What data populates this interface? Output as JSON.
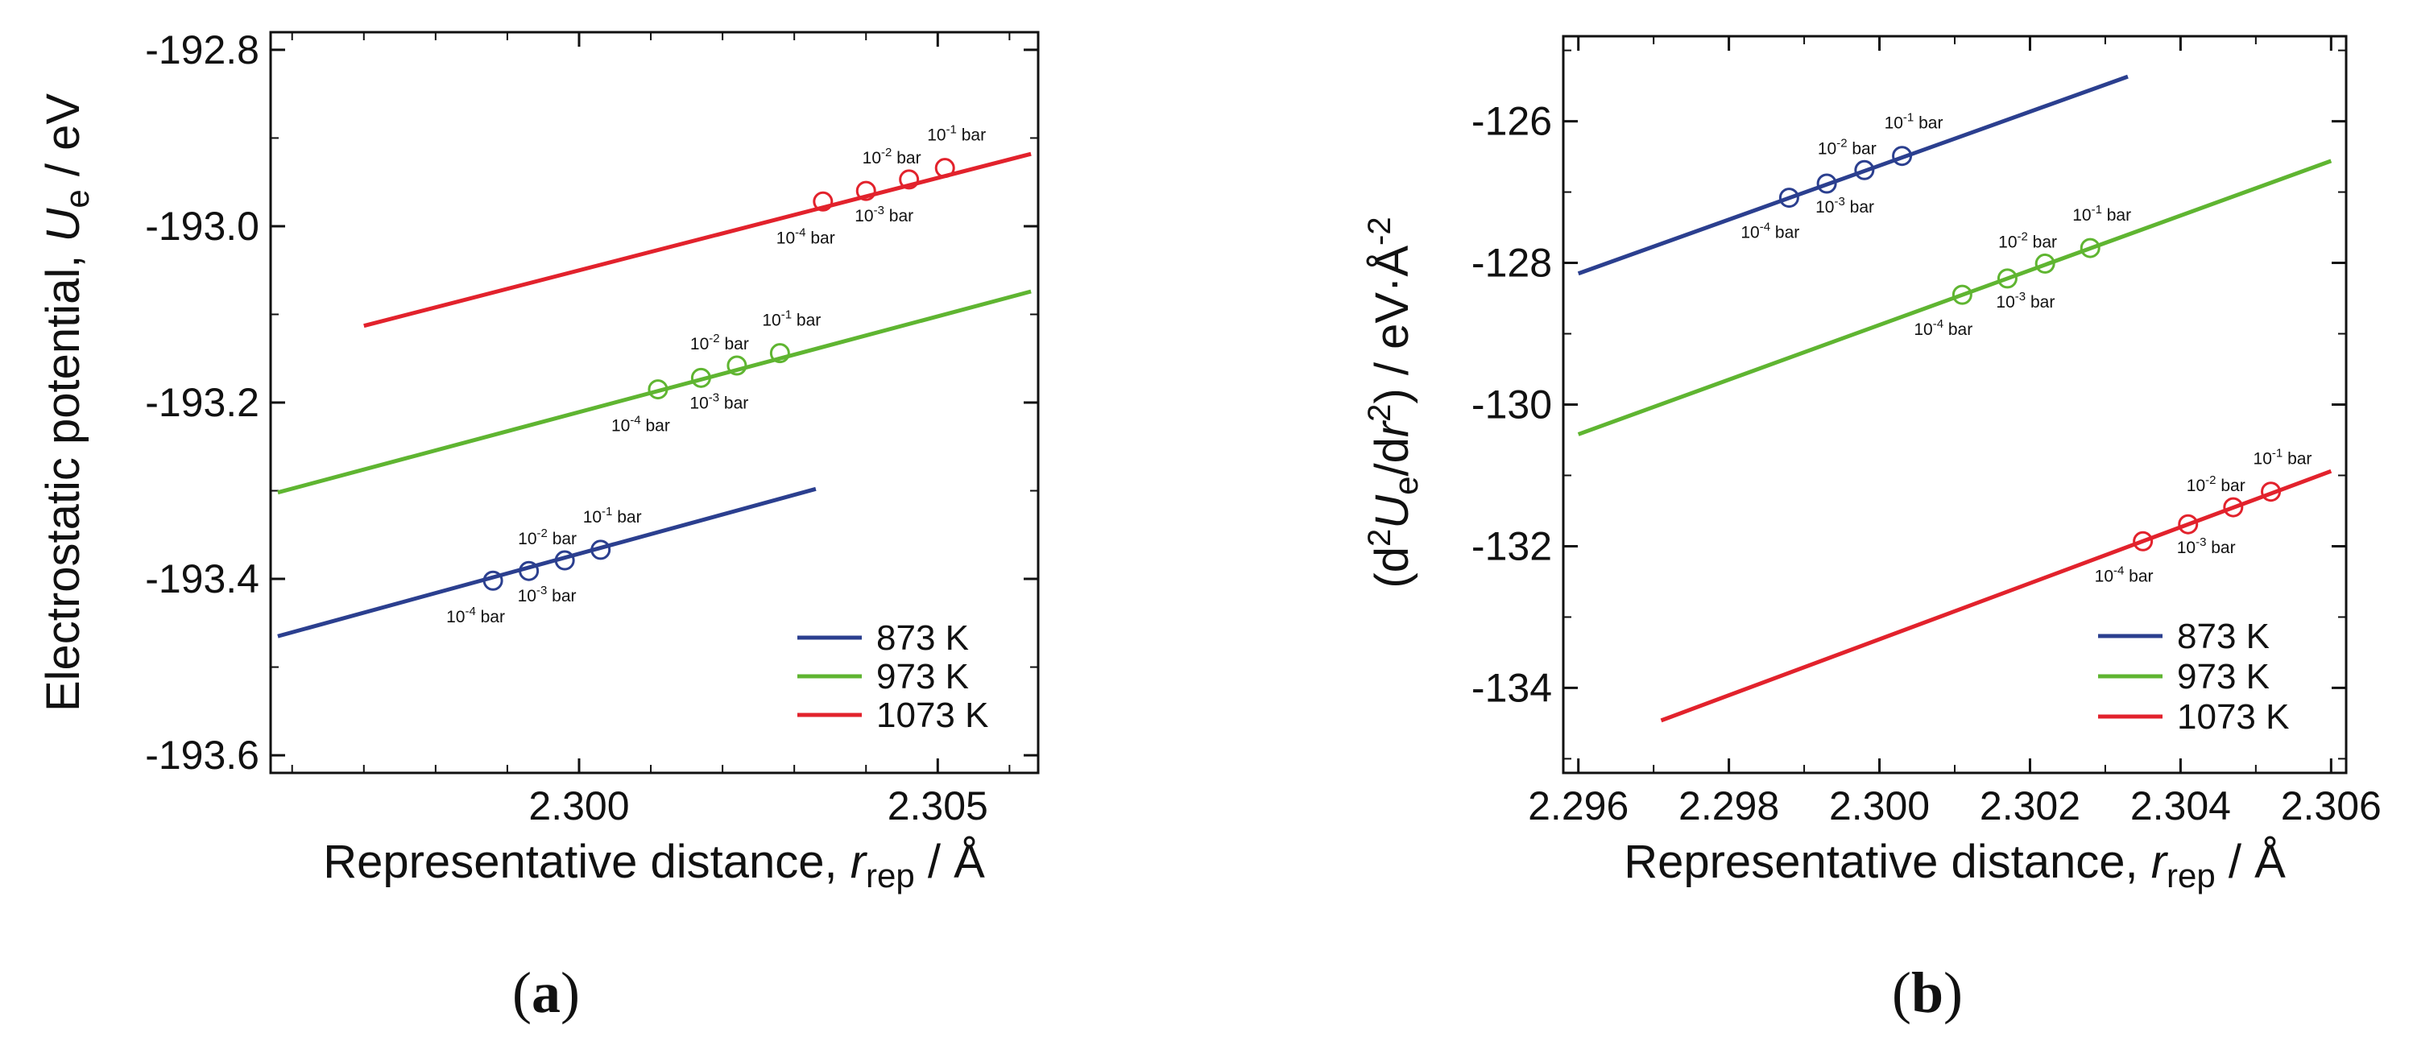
{
  "chart_data": [
    {
      "id": "a",
      "type": "line",
      "panel_label": "(a)",
      "panel_letter": "a",
      "xlabel": "Representative distance, r_rep / Å",
      "xlabel_parts": {
        "pre": "Representative distance, ",
        "sym": "r",
        "sub": "rep",
        "post": " / Å"
      },
      "ylabel": "Electrostatic potential, U_e / eV",
      "ylabel_parts": {
        "pre": "Electrostatic potential, ",
        "sym": "U",
        "sub": "e",
        "post": " / eV"
      },
      "xlim": [
        2.2957,
        2.3064
      ],
      "ylim": [
        -193.62,
        -192.78
      ],
      "xticks": [
        2.3,
        2.305
      ],
      "xtick_labels": [
        "2.300",
        "2.305"
      ],
      "xminor": [
        2.296,
        2.297,
        2.298,
        2.299,
        2.301,
        2.302,
        2.303,
        2.304,
        2.306
      ],
      "yticks": [
        -193.6,
        -193.4,
        -193.2,
        -193.0,
        -192.8
      ],
      "ytick_labels": [
        "-193.6",
        "-193.4",
        "-193.2",
        "-193.0",
        "-192.8"
      ],
      "yminor": [
        -193.5,
        -193.3,
        -193.1,
        -192.9
      ],
      "legend": {
        "position": "bottom-right",
        "entries": [
          "873 K",
          "973 K",
          "1073 K"
        ]
      },
      "series": [
        {
          "name": "873 K",
          "color": "#2b3f8f",
          "line": {
            "x": [
              2.2958,
              2.3033
            ],
            "y": [
              -193.465,
              -193.298
            ]
          },
          "points": [
            {
              "x": 2.2988,
              "y": -193.402,
              "exp": "-4"
            },
            {
              "x": 2.2993,
              "y": -193.391,
              "exp": "-3"
            },
            {
              "x": 2.2998,
              "y": -193.379,
              "exp": "-2"
            },
            {
              "x": 2.3003,
              "y": -193.367,
              "exp": "-1"
            }
          ]
        },
        {
          "name": "973 K",
          "color": "#5fb531",
          "line": {
            "x": [
              2.2958,
              2.3063
            ],
            "y": [
              -193.302,
              -193.074
            ]
          },
          "points": [
            {
              "x": 2.3011,
              "y": -193.185,
              "exp": "-4"
            },
            {
              "x": 2.3017,
              "y": -193.172,
              "exp": "-3"
            },
            {
              "x": 2.3022,
              "y": -193.158,
              "exp": "-2"
            },
            {
              "x": 2.3028,
              "y": -193.144,
              "exp": "-1"
            }
          ]
        },
        {
          "name": "1073 K",
          "color": "#e2222c",
          "line": {
            "x": [
              2.297,
              2.3063
            ],
            "y": [
              -193.113,
              -192.918
            ]
          },
          "points": [
            {
              "x": 2.3034,
              "y": -192.972,
              "exp": "-4"
            },
            {
              "x": 2.304,
              "y": -192.96,
              "exp": "-3"
            },
            {
              "x": 2.3046,
              "y": -192.947,
              "exp": "-2"
            },
            {
              "x": 2.3051,
              "y": -192.934,
              "exp": "-1"
            }
          ]
        }
      ]
    },
    {
      "id": "b",
      "type": "line",
      "panel_label": "(b)",
      "panel_letter": "b",
      "xlabel": "Representative distance, r_rep / Å",
      "xlabel_parts": {
        "pre": "Representative distance, ",
        "sym": "r",
        "sub": "rep",
        "post": " / Å"
      },
      "ylabel": "(d²U_e/dr²) / eV·Å⁻²",
      "xlim": [
        2.2958,
        2.3062
      ],
      "ylim": [
        -135.2,
        -124.8
      ],
      "xticks": [
        2.296,
        2.298,
        2.3,
        2.302,
        2.304,
        2.306
      ],
      "xtick_labels": [
        "2.296",
        "2.298",
        "2.300",
        "2.302",
        "2.304",
        "2.306"
      ],
      "xminor": [
        2.297,
        2.299,
        2.301,
        2.303,
        2.305
      ],
      "yticks": [
        -134,
        -132,
        -130,
        -128,
        -126
      ],
      "ytick_labels": [
        "-134",
        "-132",
        "-130",
        "-128",
        "-126"
      ],
      "yminor": [
        -135,
        -133,
        -131,
        -129,
        -127,
        -125
      ],
      "legend": {
        "position": "bottom-right",
        "entries": [
          "873 K",
          "973 K",
          "1073 K"
        ]
      },
      "series": [
        {
          "name": "873 K",
          "color": "#2b3f8f",
          "line": {
            "x": [
              2.296,
              2.3033
            ],
            "y": [
              -128.15,
              -125.37
            ]
          },
          "points": [
            {
              "x": 2.2988,
              "y": -127.08,
              "exp": "-4"
            },
            {
              "x": 2.2993,
              "y": -126.88,
              "exp": "-3"
            },
            {
              "x": 2.2998,
              "y": -126.69,
              "exp": "-2"
            },
            {
              "x": 2.3003,
              "y": -126.49,
              "exp": "-1"
            }
          ]
        },
        {
          "name": "973 K",
          "color": "#5fb531",
          "line": {
            "x": [
              2.296,
              2.306
            ],
            "y": [
              -130.42,
              -126.56
            ]
          },
          "points": [
            {
              "x": 2.3011,
              "y": -128.45,
              "exp": "-4"
            },
            {
              "x": 2.3017,
              "y": -128.22,
              "exp": "-3"
            },
            {
              "x": 2.3022,
              "y": -128.01,
              "exp": "-2"
            },
            {
              "x": 2.3028,
              "y": -127.79,
              "exp": "-1"
            }
          ]
        },
        {
          "name": "1073 K",
          "color": "#e2222c",
          "line": {
            "x": [
              2.2971,
              2.306
            ],
            "y": [
              -134.46,
              -130.94
            ]
          },
          "points": [
            {
              "x": 2.3035,
              "y": -131.93,
              "exp": "-4"
            },
            {
              "x": 2.3041,
              "y": -131.69,
              "exp": "-3"
            },
            {
              "x": 2.3047,
              "y": -131.45,
              "exp": "-2"
            },
            {
              "x": 2.3052,
              "y": -131.23,
              "exp": "-1"
            }
          ]
        }
      ]
    }
  ],
  "point_label_unit": "bar",
  "point_label_base": "10"
}
